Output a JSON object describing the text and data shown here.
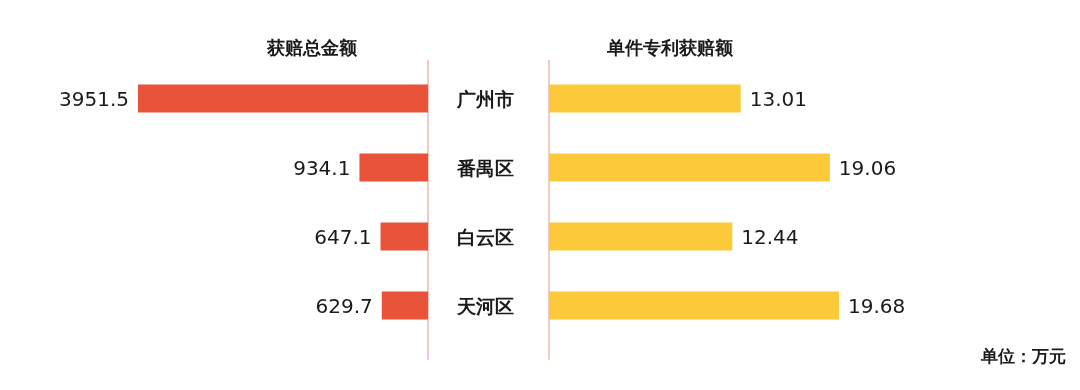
{
  "chart_data": [
    {
      "type": "bar",
      "orientation": "horizontal",
      "title": "获赔总金额",
      "categories": [
        "广州市",
        "番禺区",
        "白云区",
        "天河区"
      ],
      "values": [
        3951.5,
        934.1,
        647.1,
        629.7
      ],
      "color": "#e8533a",
      "data_labels": true,
      "tick_labels": "y"
    },
    {
      "type": "bar",
      "orientation": "horizontal",
      "title": "单件专利获赔额",
      "categories": [
        null,
        null,
        null,
        null
      ],
      "values": [
        13.01,
        19.06,
        12.44,
        19.68
      ],
      "color": "#fcc93a",
      "data_labels": true,
      "tick_labels": false,
      "annotations": [
        "单位：万元"
      ]
    }
  ]
}
